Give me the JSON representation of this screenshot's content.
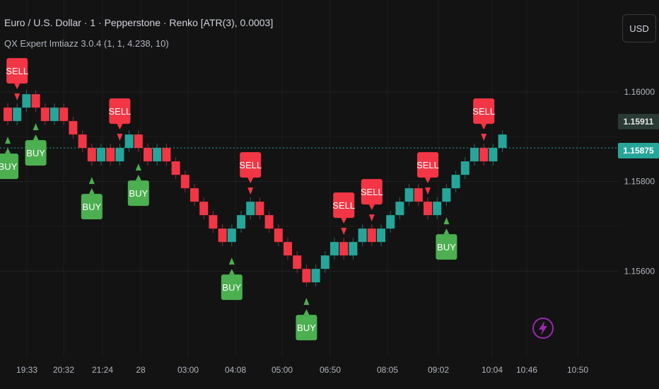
{
  "header": {
    "symbol_title": "Euro / U.S. Dollar · 1 · Pepperstone · Renko [ATR(3), 0.0003]",
    "indicator_title": "QX Expert Imtiazz 3.0.4 (1, 1, 4.238, 10)",
    "currency_button": "USD"
  },
  "price_tags": {
    "upper": "1.15911",
    "current": "1.15875"
  },
  "colors": {
    "background": "#131313",
    "up_brick": "#26a69a",
    "down_brick": "#f23645",
    "buy_label": "#4caf50",
    "sell_label": "#f23645",
    "current_price_line": "#26a69a",
    "bolt_icon": "#9c27b0"
  },
  "icons": {
    "bolt": "lightning-bolt-icon"
  },
  "chart_data": {
    "type": "renko",
    "y_ticks": [
      "1.16000",
      "1.15800",
      "1.15600"
    ],
    "x_ticks": [
      "19:33",
      "20:32",
      "21:24",
      "28",
      "03:00",
      "04:08",
      "05:00",
      "06:50",
      "08:05",
      "09:02",
      "10:04",
      "10:46",
      "10:50"
    ],
    "brick_size": 0.0003,
    "current_price": 1.15875,
    "bricks": [
      {
        "dir": "down",
        "close": 1.15935
      },
      {
        "dir": "up",
        "close": 1.15965
      },
      {
        "dir": "up",
        "close": 1.15995
      },
      {
        "dir": "down",
        "close": 1.15965
      },
      {
        "dir": "down",
        "close": 1.15935
      },
      {
        "dir": "up",
        "close": 1.15965
      },
      {
        "dir": "down",
        "close": 1.15935
      },
      {
        "dir": "down",
        "close": 1.15905
      },
      {
        "dir": "down",
        "close": 1.15875
      },
      {
        "dir": "down",
        "close": 1.15845
      },
      {
        "dir": "up",
        "close": 1.15875
      },
      {
        "dir": "down",
        "close": 1.15845
      },
      {
        "dir": "up",
        "close": 1.15875
      },
      {
        "dir": "up",
        "close": 1.15905
      },
      {
        "dir": "down",
        "close": 1.15875
      },
      {
        "dir": "down",
        "close": 1.15845
      },
      {
        "dir": "up",
        "close": 1.15875
      },
      {
        "dir": "down",
        "close": 1.15845
      },
      {
        "dir": "down",
        "close": 1.15815
      },
      {
        "dir": "down",
        "close": 1.15785
      },
      {
        "dir": "down",
        "close": 1.15755
      },
      {
        "dir": "down",
        "close": 1.15725
      },
      {
        "dir": "down",
        "close": 1.15695
      },
      {
        "dir": "down",
        "close": 1.15665
      },
      {
        "dir": "up",
        "close": 1.15695
      },
      {
        "dir": "up",
        "close": 1.15725
      },
      {
        "dir": "up",
        "close": 1.15755
      },
      {
        "dir": "down",
        "close": 1.15725
      },
      {
        "dir": "down",
        "close": 1.15695
      },
      {
        "dir": "down",
        "close": 1.15665
      },
      {
        "dir": "down",
        "close": 1.15635
      },
      {
        "dir": "down",
        "close": 1.15605
      },
      {
        "dir": "down",
        "close": 1.15575
      },
      {
        "dir": "up",
        "close": 1.15605
      },
      {
        "dir": "up",
        "close": 1.15635
      },
      {
        "dir": "up",
        "close": 1.15665
      },
      {
        "dir": "down",
        "close": 1.15635
      },
      {
        "dir": "up",
        "close": 1.15665
      },
      {
        "dir": "up",
        "close": 1.15695
      },
      {
        "dir": "down",
        "close": 1.15665
      },
      {
        "dir": "up",
        "close": 1.15695
      },
      {
        "dir": "up",
        "close": 1.15725
      },
      {
        "dir": "up",
        "close": 1.15755
      },
      {
        "dir": "up",
        "close": 1.15785
      },
      {
        "dir": "down",
        "close": 1.15755
      },
      {
        "dir": "down",
        "close": 1.15725
      },
      {
        "dir": "up",
        "close": 1.15755
      },
      {
        "dir": "up",
        "close": 1.15785
      },
      {
        "dir": "up",
        "close": 1.15815
      },
      {
        "dir": "up",
        "close": 1.15845
      },
      {
        "dir": "up",
        "close": 1.15875
      },
      {
        "dir": "down",
        "close": 1.15845
      },
      {
        "dir": "up",
        "close": 1.15875
      },
      {
        "dir": "up",
        "close": 1.15905
      }
    ],
    "signals": [
      {
        "type": "SELL",
        "brick": 1
      },
      {
        "type": "BUY",
        "brick": 0
      },
      {
        "type": "SELL",
        "brick": 12
      },
      {
        "type": "BUY",
        "brick": 3
      },
      {
        "type": "BUY",
        "brick": 9
      },
      {
        "type": "BUY",
        "brick": 14
      },
      {
        "type": "SELL",
        "brick": 26
      },
      {
        "type": "BUY",
        "brick": 24
      },
      {
        "type": "SELL",
        "brick": 36
      },
      {
        "type": "SELL",
        "brick": 39
      },
      {
        "type": "BUY",
        "brick": 32
      },
      {
        "type": "SELL",
        "brick": 45
      },
      {
        "type": "BUY",
        "brick": 47
      },
      {
        "type": "SELL",
        "brick": 51
      }
    ]
  }
}
